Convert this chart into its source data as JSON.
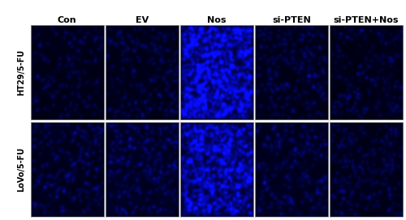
{
  "col_labels": [
    "Con",
    "EV",
    "Nos",
    "si-PTEN",
    "si-PTEN+Nos"
  ],
  "row_labels": [
    "HT29/5-FU",
    "LoVo/5-FU"
  ],
  "figure_bg": "#ffffff",
  "col_label_fontsize": 8,
  "row_label_fontsize": 7,
  "panel_base_blue": [
    [
      0.12,
      0.13,
      0.3,
      0.13,
      0.12
    ],
    [
      0.15,
      0.16,
      0.28,
      0.14,
      0.13
    ]
  ],
  "bright_dot_density": [
    [
      0.018,
      0.022,
      0.12,
      0.025,
      0.022
    ],
    [
      0.025,
      0.028,
      0.1,
      0.026,
      0.024
    ]
  ],
  "bright_dot_intensity": [
    [
      0.55,
      0.6,
      1.0,
      0.6,
      0.55
    ],
    [
      0.65,
      0.68,
      0.95,
      0.62,
      0.6
    ]
  ],
  "seed": 42
}
